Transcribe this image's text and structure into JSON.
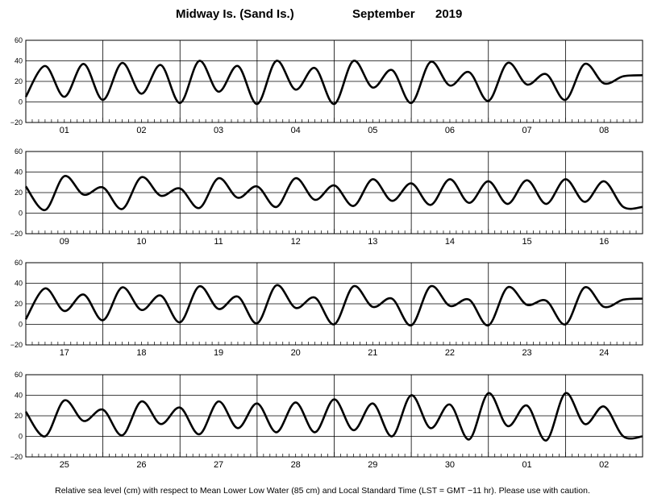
{
  "chart_data": {
    "type": "line",
    "title": {
      "station": "Midway Is. (Sand Is.)",
      "month": "September",
      "year": "2019"
    },
    "yticks": [
      -20,
      0,
      20,
      40,
      60
    ],
    "ylim": [
      -20,
      60
    ],
    "grid": true,
    "footnote": "Relative sea level (cm) with respect to Mean Lower Low Water (85 cm) and Local Standard Time (LST = GMT −11 hr). Please use with caution.",
    "panels": [
      {
        "days": [
          "01",
          "02",
          "03",
          "04",
          "05",
          "06",
          "07",
          "08"
        ],
        "x": [
          0,
          0.25,
          0.5,
          0.75,
          1,
          1.25,
          1.5,
          1.75,
          2,
          2.25,
          2.5,
          2.75,
          3,
          3.25,
          3.5,
          3.75,
          4,
          4.25,
          4.5,
          4.75,
          5,
          5.25,
          5.5,
          5.75,
          6,
          6.25,
          6.5,
          6.75,
          7,
          7.25,
          7.5,
          7.75,
          8
        ],
        "y": [
          5,
          35,
          5,
          37,
          2,
          38,
          8,
          36,
          -1,
          40,
          10,
          35,
          -2,
          40,
          12,
          33,
          -2,
          40,
          14,
          31,
          -1,
          39,
          16,
          29,
          1,
          38,
          17,
          27,
          2,
          37,
          18,
          25,
          26
        ]
      },
      {
        "days": [
          "09",
          "10",
          "11",
          "12",
          "13",
          "14",
          "15",
          "16"
        ],
        "x": [
          0,
          0.25,
          0.5,
          0.75,
          1,
          1.25,
          1.5,
          1.75,
          2,
          2.25,
          2.5,
          2.75,
          3,
          3.25,
          3.5,
          3.75,
          4,
          4.25,
          4.5,
          4.75,
          5,
          5.25,
          5.5,
          5.75,
          6,
          6.25,
          6.5,
          6.75,
          7,
          7.25,
          7.5,
          7.75,
          8
        ],
        "y": [
          26,
          3,
          36,
          18,
          25,
          4,
          35,
          17,
          24,
          5,
          34,
          15,
          26,
          6,
          34,
          13,
          27,
          7,
          33,
          12,
          29,
          8,
          33,
          10,
          31,
          9,
          32,
          9,
          33,
          11,
          31,
          6,
          6
        ]
      },
      {
        "days": [
          "17",
          "18",
          "19",
          "20",
          "21",
          "22",
          "23",
          "24"
        ],
        "x": [
          0,
          0.25,
          0.5,
          0.75,
          1,
          1.25,
          1.5,
          1.75,
          2,
          2.25,
          2.5,
          2.75,
          3,
          3.25,
          3.5,
          3.75,
          4,
          4.25,
          4.5,
          4.75,
          5,
          5.25,
          5.5,
          5.75,
          6,
          6.25,
          6.5,
          6.75,
          7,
          7.25,
          7.5,
          7.75,
          8
        ],
        "y": [
          5,
          35,
          13,
          29,
          4,
          36,
          14,
          28,
          2,
          37,
          15,
          27,
          1,
          38,
          16,
          26,
          0,
          37,
          17,
          25,
          -1,
          37,
          18,
          24,
          -1,
          36,
          19,
          23,
          0,
          36,
          17,
          24,
          25
        ]
      },
      {
        "days": [
          "25",
          "26",
          "27",
          "28",
          "29",
          "30",
          "01",
          "02"
        ],
        "x": [
          0,
          0.25,
          0.5,
          0.75,
          1,
          1.25,
          1.5,
          1.75,
          2,
          2.25,
          2.5,
          2.75,
          3,
          3.25,
          3.5,
          3.75,
          4,
          4.25,
          4.5,
          4.75,
          5,
          5.25,
          5.5,
          5.75,
          6,
          6.25,
          6.5,
          6.75,
          7,
          7.25,
          7.5,
          7.75,
          8
        ],
        "y": [
          24,
          0,
          35,
          15,
          26,
          1,
          34,
          12,
          28,
          2,
          34,
          8,
          32,
          4,
          33,
          4,
          36,
          6,
          32,
          0,
          40,
          8,
          31,
          -3,
          42,
          10,
          30,
          -4,
          42,
          12,
          29,
          0,
          0
        ]
      }
    ]
  }
}
